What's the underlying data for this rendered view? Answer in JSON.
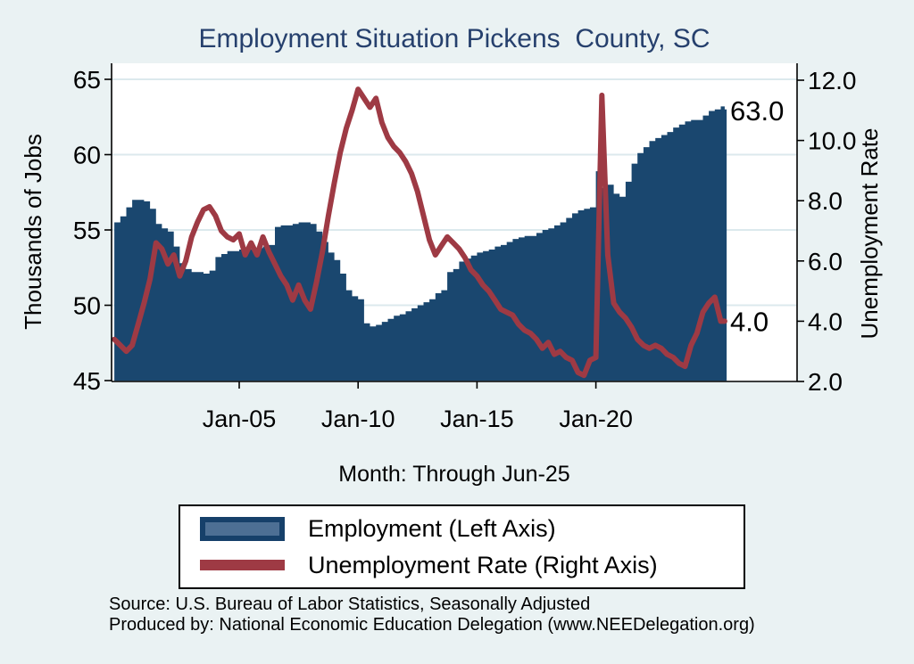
{
  "title": "Employment Situation Pickens  County, SC",
  "axes": {
    "left": {
      "title": "Thousands of Jobs",
      "ticks": [
        65,
        60,
        55,
        50,
        45
      ],
      "range": [
        45,
        65
      ]
    },
    "right": {
      "title": "Unemployment Rate",
      "tick_labels": [
        "12.0",
        "10.0",
        "8.0",
        "6.0",
        "4.0",
        "2.0"
      ],
      "tick_values": [
        12,
        10,
        8,
        6,
        4,
        2
      ],
      "range": [
        2,
        12
      ]
    },
    "x": {
      "caption": "Month: Through Jun-25",
      "ticks": [
        {
          "label": "Jan-05",
          "year": 2005
        },
        {
          "label": "Jan-10",
          "year": 2010
        },
        {
          "label": "Jan-15",
          "year": 2015
        },
        {
          "label": "Jan-20",
          "year": 2020
        }
      ]
    }
  },
  "end_labels": {
    "employment": "63.0",
    "unemployment": "4.0"
  },
  "legend": [
    {
      "label": "Employment (Left Axis)",
      "swatch": "bar"
    },
    {
      "label": "Unemployment Rate (Right Axis)",
      "swatch": "line"
    }
  ],
  "source_lines": [
    "Source: U.S. Bureau of Labor Statistics, Seasonally Adjusted",
    "Produced by: National Economic Education Delegation (www.NEEDelegation.org)"
  ],
  "colors": {
    "background": "#EAF2F3",
    "plot_bg": "#FFFFFF",
    "grid": "#DCE9ED",
    "employment_fill": "#1A476F",
    "legend_bar_inner": "#4D6F94",
    "unemployment_line": "#9E3A44",
    "title": "#26406D",
    "axis": "#000000"
  },
  "chart_data": {
    "type": "combo",
    "subtype": "monthly bar area (left axis) + line (right axis), sampled quarterly",
    "title": "Employment Situation Pickens  County, SC",
    "xlabel": "Month: Through Jun-25",
    "ylabel_left": "Thousands of Jobs",
    "ylabel_right": "Unemployment Rate",
    "ylim_left": [
      45,
      65
    ],
    "ylim_right": [
      2,
      12
    ],
    "x_tick_years": [
      2005,
      2010,
      2015,
      2020
    ],
    "grid": "horizontal, left-axis ticks only",
    "legend_position": "below chart, boxed",
    "dates": [
      "1999-10",
      "2000-01",
      "2000-04",
      "2000-07",
      "2000-10",
      "2001-01",
      "2001-04",
      "2001-07",
      "2001-10",
      "2002-01",
      "2002-04",
      "2002-07",
      "2002-10",
      "2003-01",
      "2003-04",
      "2003-07",
      "2003-10",
      "2004-01",
      "2004-04",
      "2004-07",
      "2004-10",
      "2005-01",
      "2005-04",
      "2005-07",
      "2005-10",
      "2006-01",
      "2006-04",
      "2006-07",
      "2006-10",
      "2007-01",
      "2007-04",
      "2007-07",
      "2007-10",
      "2008-01",
      "2008-04",
      "2008-07",
      "2008-10",
      "2009-01",
      "2009-04",
      "2009-07",
      "2009-10",
      "2010-01",
      "2010-04",
      "2010-07",
      "2010-10",
      "2011-01",
      "2011-04",
      "2011-07",
      "2011-10",
      "2012-01",
      "2012-04",
      "2012-07",
      "2012-10",
      "2013-01",
      "2013-04",
      "2013-07",
      "2013-10",
      "2014-01",
      "2014-04",
      "2014-07",
      "2014-10",
      "2015-01",
      "2015-04",
      "2015-07",
      "2015-10",
      "2016-01",
      "2016-04",
      "2016-07",
      "2016-10",
      "2017-01",
      "2017-04",
      "2017-07",
      "2017-10",
      "2018-01",
      "2018-04",
      "2018-07",
      "2018-10",
      "2019-01",
      "2019-04",
      "2019-07",
      "2019-10",
      "2020-01",
      "2020-04",
      "2020-07",
      "2020-10",
      "2021-01",
      "2021-04",
      "2021-07",
      "2021-10",
      "2022-01",
      "2022-04",
      "2022-07",
      "2022-10",
      "2023-01",
      "2023-04",
      "2023-07",
      "2023-10",
      "2024-01",
      "2024-04",
      "2024-07",
      "2024-10",
      "2025-01",
      "2025-04",
      "2025-06"
    ],
    "series": [
      {
        "name": "Employment (Left Axis)",
        "axis": "left",
        "type": "area",
        "last_value_label": "63.0",
        "values": [
          55.5,
          55.9,
          56.5,
          57.0,
          57.0,
          56.9,
          56.4,
          55.4,
          55.1,
          54.9,
          53.9,
          52.8,
          52.4,
          52.2,
          52.2,
          52.1,
          52.3,
          53.2,
          53.4,
          53.6,
          53.6,
          53.7,
          53.7,
          53.8,
          53.8,
          53.9,
          54.0,
          55.2,
          55.3,
          55.3,
          55.4,
          55.5,
          55.5,
          55.4,
          54.9,
          54.2,
          53.5,
          53.0,
          52.1,
          51.0,
          50.6,
          50.4,
          48.8,
          48.6,
          48.7,
          48.9,
          49.1,
          49.3,
          49.4,
          49.6,
          49.8,
          50.0,
          50.2,
          50.4,
          50.8,
          51.0,
          52.2,
          52.4,
          52.9,
          53.1,
          53.3,
          53.5,
          53.6,
          53.7,
          53.9,
          54.0,
          54.2,
          54.4,
          54.5,
          54.6,
          54.6,
          54.8,
          55.0,
          55.1,
          55.3,
          55.5,
          55.8,
          56.1,
          56.3,
          56.4,
          56.5,
          58.9,
          57.8,
          58.0,
          57.4,
          57.2,
          58.2,
          59.4,
          60.1,
          60.5,
          60.9,
          61.1,
          61.3,
          61.5,
          61.8,
          62.0,
          62.2,
          62.3,
          62.3,
          62.6,
          62.9,
          63.0,
          63.2,
          63.0
        ]
      },
      {
        "name": "Unemployment Rate (Right Axis)",
        "axis": "right",
        "type": "line",
        "last_value_label": "4.0",
        "values": [
          3.4,
          3.2,
          3.0,
          3.2,
          3.9,
          4.6,
          5.4,
          6.6,
          6.4,
          5.9,
          6.2,
          5.5,
          6.0,
          6.8,
          7.3,
          7.7,
          7.8,
          7.5,
          7.0,
          6.8,
          6.7,
          6.9,
          6.2,
          6.6,
          6.2,
          6.8,
          6.3,
          5.9,
          5.5,
          5.2,
          4.7,
          5.2,
          4.7,
          4.4,
          5.3,
          6.3,
          7.5,
          8.6,
          9.6,
          10.4,
          11.0,
          11.7,
          11.4,
          11.1,
          11.4,
          10.6,
          10.1,
          9.8,
          9.6,
          9.3,
          8.9,
          8.3,
          7.5,
          6.7,
          6.2,
          6.5,
          6.8,
          6.6,
          6.4,
          6.1,
          5.7,
          5.5,
          5.2,
          5.0,
          4.7,
          4.4,
          4.3,
          4.2,
          3.9,
          3.7,
          3.6,
          3.4,
          3.1,
          3.3,
          2.9,
          3.0,
          2.8,
          2.7,
          2.3,
          2.2,
          2.7,
          2.8,
          11.5,
          6.2,
          4.6,
          4.3,
          4.1,
          3.8,
          3.4,
          3.2,
          3.1,
          3.2,
          3.1,
          2.9,
          2.8,
          2.6,
          2.5,
          3.2,
          3.6,
          4.3,
          4.6,
          4.8,
          4.0,
          4.0
        ]
      }
    ]
  }
}
